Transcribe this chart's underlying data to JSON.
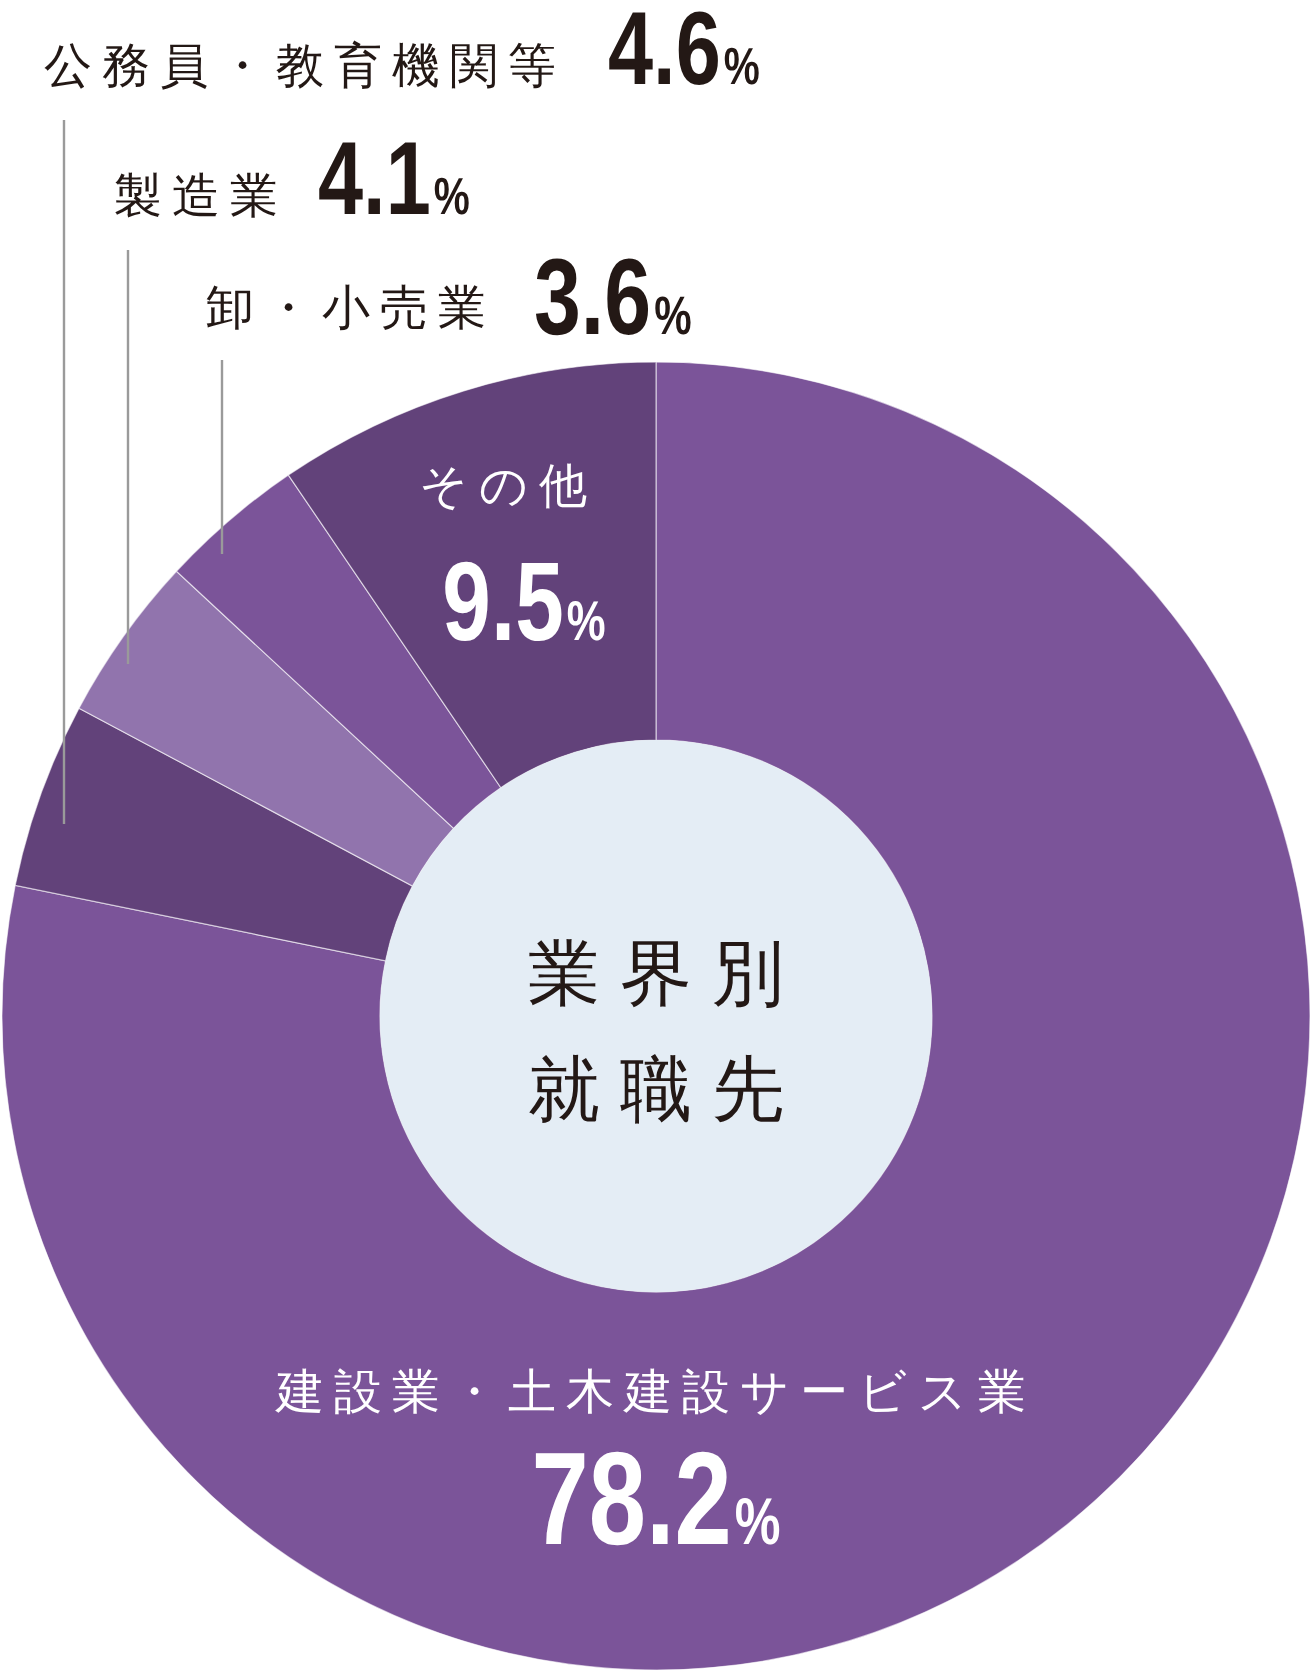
{
  "chart_data": {
    "type": "donut",
    "title": "業界別就職先",
    "categories": [
      "建設業・土木建設サービス業",
      "公務員・教育機関等",
      "製造業",
      "卸・小売業",
      "その他"
    ],
    "values": [
      78.2,
      4.6,
      4.1,
      3.6,
      9.5
    ],
    "colors": [
      "#7b5499",
      "#62427a",
      "#9174ad",
      "#7b5499",
      "#62427a"
    ],
    "value_labels": [
      "78.2%",
      "4.6%",
      "4.1%",
      "3.6%",
      "9.5%"
    ]
  }
}
